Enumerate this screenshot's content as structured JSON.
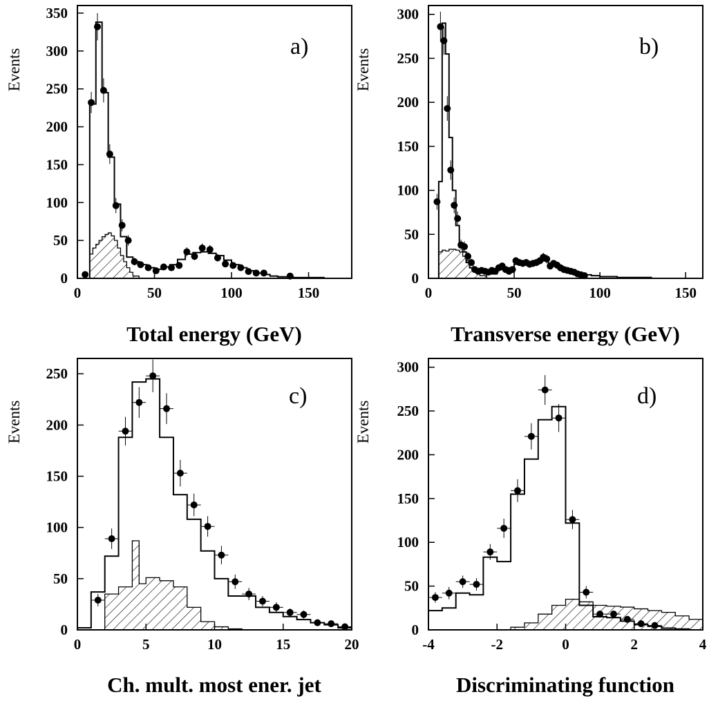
{
  "chart_data": [
    {
      "type": "bar",
      "panel_label": "a)",
      "xlabel": "Total energy (GeV)",
      "ylabel": "Events",
      "xlim": [
        0,
        178
      ],
      "ylim": [
        0,
        360
      ],
      "xticks": [
        0,
        50,
        100,
        150
      ],
      "yticks": [
        0,
        50,
        100,
        150,
        200,
        250,
        300,
        350
      ],
      "mc_total": {
        "edges": [
          0,
          8,
          12,
          16,
          20,
          24,
          28,
          32,
          36,
          40,
          45,
          50,
          55,
          60,
          65,
          70,
          75,
          80,
          85,
          90,
          95,
          100,
          105,
          110,
          115,
          120,
          125,
          130,
          140,
          150,
          160,
          170,
          178
        ],
        "values": [
          0,
          230,
          338,
          245,
          160,
          98,
          55,
          28,
          22,
          18,
          14,
          12,
          15,
          18,
          25,
          32,
          34,
          35,
          33,
          30,
          24,
          18,
          14,
          10,
          7,
          5,
          3,
          2,
          1,
          1,
          0,
          0
        ]
      },
      "background": {
        "edges": [
          0,
          8,
          10,
          12,
          14,
          16,
          18,
          20,
          22,
          24,
          26,
          28,
          30,
          32,
          34,
          36,
          40,
          178
        ],
        "values": [
          0,
          32,
          40,
          45,
          50,
          55,
          58,
          60,
          56,
          50,
          40,
          30,
          22,
          14,
          8,
          3,
          0
        ]
      },
      "data_points": {
        "x": [
          5,
          9,
          13,
          17,
          21,
          25,
          29,
          33,
          37,
          41,
          46,
          51,
          56,
          61,
          66,
          71,
          76,
          81,
          86,
          91,
          96,
          101,
          106,
          111,
          116,
          121,
          138
        ],
        "y": [
          5,
          232,
          332,
          248,
          164,
          96,
          70,
          50,
          22,
          18,
          14,
          10,
          15,
          14,
          17,
          35,
          29,
          40,
          38,
          27,
          19,
          17,
          14,
          9,
          7,
          7,
          3
        ],
        "yerr": [
          2,
          14,
          18,
          16,
          13,
          10,
          8,
          7,
          5,
          4,
          4,
          3,
          4,
          4,
          4,
          6,
          5,
          6,
          6,
          5,
          4,
          4,
          4,
          3,
          3,
          3,
          2
        ],
        "xerr": 2
      }
    },
    {
      "type": "bar",
      "panel_label": "b)",
      "xlabel": "Transverse energy (GeV)",
      "ylabel": "Events",
      "xlim": [
        0,
        160
      ],
      "ylim": [
        0,
        310
      ],
      "xticks": [
        0,
        50,
        100,
        150
      ],
      "yticks": [
        0,
        50,
        100,
        150,
        200,
        250,
        300
      ],
      "mc_total": {
        "edges": [
          0,
          6,
          8,
          10,
          12,
          14,
          16,
          18,
          20,
          22,
          24,
          26,
          28,
          30,
          35,
          40,
          45,
          50,
          55,
          60,
          65,
          70,
          75,
          80,
          85,
          90,
          95,
          100,
          110,
          120,
          130,
          140,
          160
        ],
        "values": [
          0,
          110,
          290,
          255,
          160,
          100,
          60,
          35,
          30,
          18,
          12,
          10,
          9,
          6,
          5,
          10,
          12,
          16,
          17,
          17,
          20,
          16,
          12,
          9,
          6,
          4,
          3,
          2,
          1,
          1,
          0,
          0
        ]
      },
      "background": {
        "edges": [
          0,
          6,
          8,
          10,
          12,
          14,
          16,
          18,
          20,
          22,
          24,
          26,
          28,
          30,
          34,
          160
        ],
        "values": [
          0,
          30,
          32,
          31,
          33,
          33,
          32,
          30,
          25,
          20,
          15,
          10,
          6,
          3,
          0
        ]
      },
      "data_points": {
        "x": [
          5,
          7,
          9,
          11,
          13,
          15,
          17,
          19,
          21,
          23,
          25,
          27,
          29,
          31,
          33,
          35,
          37,
          39,
          41,
          43,
          45,
          47,
          49,
          51,
          53,
          55,
          57,
          59,
          61,
          63,
          65,
          67,
          69,
          71,
          73,
          75,
          77,
          79,
          81,
          83,
          85,
          87,
          89,
          91
        ],
        "y": [
          87,
          286,
          270,
          193,
          123,
          83,
          68,
          38,
          36,
          25,
          18,
          10,
          8,
          9,
          8,
          7,
          9,
          8,
          12,
          14,
          10,
          8,
          10,
          20,
          18,
          17,
          18,
          16,
          17,
          18,
          20,
          24,
          22,
          14,
          17,
          15,
          12,
          10,
          9,
          8,
          7,
          5,
          4,
          3
        ],
        "yerr": [
          9,
          17,
          16,
          14,
          11,
          9,
          8,
          6,
          6,
          5,
          4,
          3,
          3,
          3,
          3,
          3,
          3,
          3,
          3,
          4,
          3,
          3,
          3,
          4,
          4,
          4,
          4,
          4,
          4,
          4,
          4,
          5,
          5,
          4,
          4,
          4,
          3,
          3,
          3,
          3,
          3,
          2,
          2,
          2
        ],
        "xerr": 1
      }
    },
    {
      "type": "bar",
      "panel_label": "c)",
      "xlabel": "Ch. mult. most ener. jet",
      "ylabel": "Events",
      "xlim": [
        0,
        20
      ],
      "ylim": [
        0,
        265
      ],
      "xticks": [
        0,
        5,
        10,
        15,
        20
      ],
      "yticks": [
        0,
        50,
        100,
        150,
        200,
        250
      ],
      "mc_total": {
        "edges": [
          0,
          1,
          2,
          3,
          4,
          5,
          6,
          7,
          8,
          9,
          10,
          11,
          12,
          13,
          14,
          15,
          16,
          17,
          18,
          19,
          20
        ],
        "values": [
          2,
          37,
          72,
          188,
          242,
          245,
          188,
          132,
          108,
          77,
          50,
          33,
          33,
          22,
          17,
          13,
          10,
          7,
          5,
          2
        ]
      },
      "background": {
        "edges": [
          0,
          1,
          2,
          3,
          4,
          4.5,
          5,
          6,
          7,
          8,
          9,
          10,
          11,
          12,
          13,
          20
        ],
        "values": [
          0,
          0,
          35,
          42,
          87,
          45,
          51,
          48,
          42,
          22,
          8,
          3,
          1,
          0,
          0
        ]
      },
      "data_points": {
        "x": [
          1.5,
          2.5,
          3.5,
          4.5,
          5.5,
          6.5,
          7.5,
          8.5,
          9.5,
          10.5,
          11.5,
          12.5,
          13.5,
          14.5,
          15.5,
          16.5,
          17.5,
          18.5,
          19.5
        ],
        "y": [
          29,
          89,
          194,
          222,
          248,
          216,
          153,
          122,
          101,
          73,
          47,
          35,
          28,
          22,
          17,
          15,
          7,
          6,
          3
        ],
        "yerr": [
          6,
          10,
          14,
          15,
          16,
          15,
          13,
          11,
          10,
          9,
          7,
          6,
          5,
          5,
          4,
          4,
          3,
          3,
          2
        ],
        "xerr": 0.5
      }
    },
    {
      "type": "bar",
      "panel_label": "d)",
      "xlabel": "Discriminating function",
      "ylabel": "Events",
      "xlim": [
        -4,
        4
      ],
      "ylim": [
        0,
        310
      ],
      "xticks": [
        -4,
        -2,
        0,
        2,
        4
      ],
      "ytick_labels_shown": [
        0,
        50,
        100,
        150,
        200,
        250,
        300
      ],
      "mc_total": {
        "edges": [
          -4,
          -3.6,
          -3.2,
          -2.8,
          -2.4,
          -2.0,
          -1.6,
          -1.2,
          -0.8,
          -0.4,
          0,
          0.4,
          0.8,
          1.2,
          1.6,
          2.0,
          2.4,
          2.8,
          3.2,
          3.6,
          4.0
        ],
        "values": [
          22,
          25,
          42,
          40,
          83,
          78,
          155,
          195,
          240,
          255,
          122,
          28,
          15,
          14,
          10,
          6,
          4,
          2,
          1,
          0
        ]
      },
      "background": {
        "edges": [
          -4,
          -1.6,
          -1.2,
          -0.8,
          -0.4,
          0,
          0.4,
          0.8,
          1.2,
          1.6,
          2.0,
          2.4,
          2.8,
          3.2,
          3.6,
          4.0
        ],
        "values": [
          0,
          3,
          8,
          18,
          28,
          35,
          32,
          28,
          27,
          26,
          24,
          22,
          20,
          16,
          12
        ]
      },
      "data_points": {
        "x": [
          -3.8,
          -3.4,
          -3.0,
          -2.6,
          -2.2,
          -1.8,
          -1.4,
          -1.0,
          -0.6,
          -0.2,
          0.2,
          0.6,
          1.0,
          1.4,
          1.8,
          2.2,
          2.6
        ],
        "y": [
          37,
          42,
          55,
          52,
          89,
          116,
          159,
          221,
          274,
          242,
          126,
          43,
          18,
          18,
          12,
          7,
          5
        ],
        "yerr": [
          6,
          7,
          7,
          7,
          9,
          11,
          13,
          15,
          17,
          16,
          11,
          7,
          4,
          4,
          3,
          3,
          2
        ],
        "xerr": 0.2
      }
    }
  ]
}
